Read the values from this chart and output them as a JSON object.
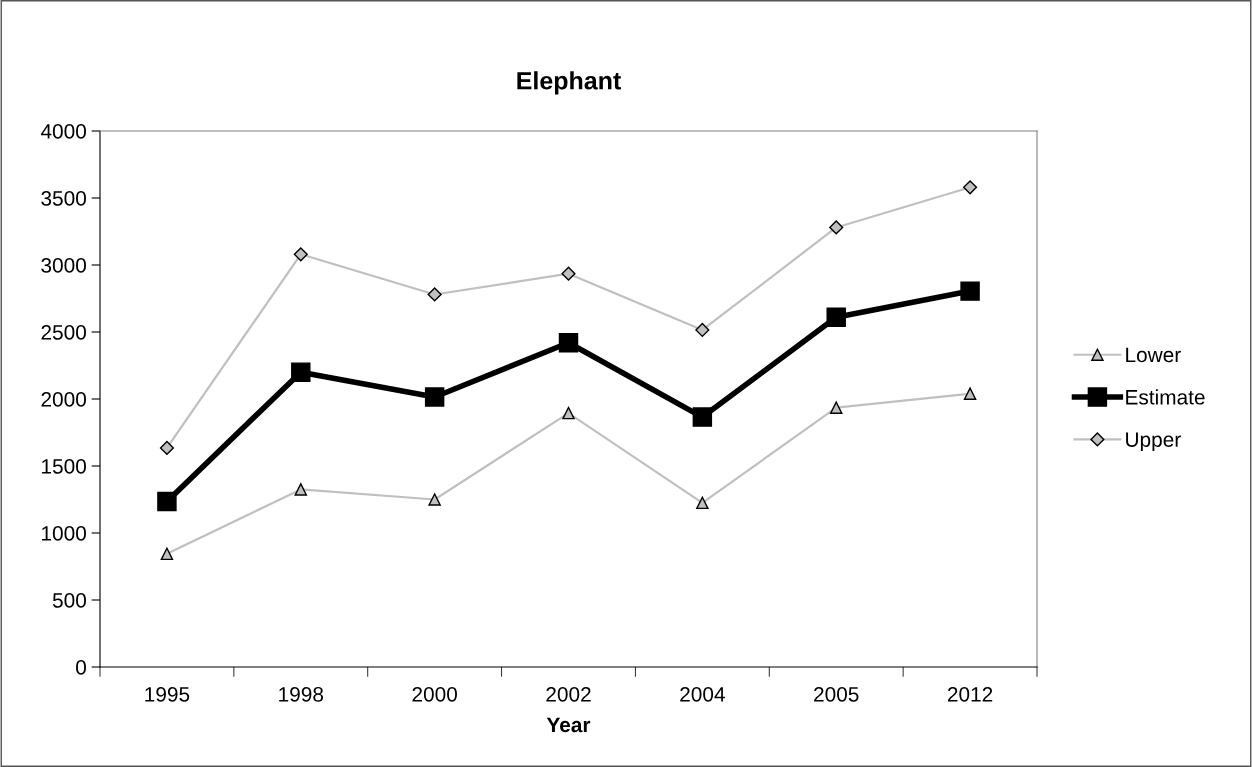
{
  "chart_data": {
    "type": "line",
    "title": "Elephant",
    "xlabel": "Year",
    "categories": [
      "1995",
      "1998",
      "2000",
      "2002",
      "2004",
      "2005",
      "2012"
    ],
    "series": [
      {
        "name": "Lower",
        "color": "#c0c0c0",
        "marker": "triangle",
        "values": [
          845,
          1325,
          1250,
          1895,
          1225,
          1935,
          2040
        ]
      },
      {
        "name": "Estimate",
        "color": "#000000",
        "marker": "square",
        "values": [
          1235,
          2200,
          2015,
          2420,
          1865,
          2610,
          2805
        ]
      },
      {
        "name": "Upper",
        "color": "#c0c0c0",
        "marker": "diamond",
        "values": [
          1635,
          3080,
          2780,
          2935,
          2515,
          3280,
          3580
        ]
      }
    ],
    "ylim": [
      0,
      4000
    ],
    "yticks": [
      0,
      500,
      1000,
      1500,
      2000,
      2500,
      3000,
      3500,
      4000
    ],
    "grid": false,
    "legend": "right",
    "line_style": "solid"
  }
}
